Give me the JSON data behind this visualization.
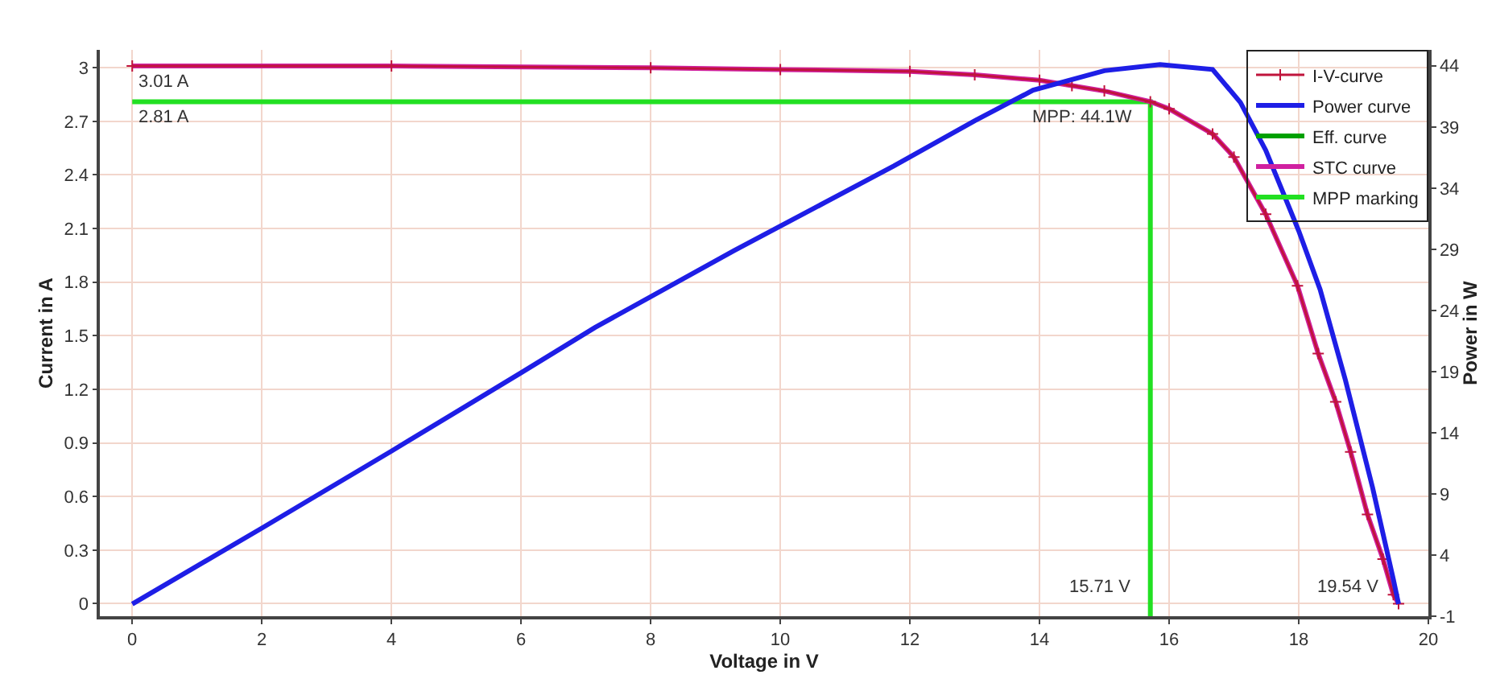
{
  "chart_data": {
    "type": "line",
    "xlabel": "Voltage in V",
    "ylabel": "Current in A",
    "y2label": "Power in W",
    "xlim": [
      -0.5,
      20
    ],
    "xticks": [
      0,
      2,
      4,
      6,
      8,
      10,
      12,
      14,
      16,
      18,
      20
    ],
    "ylim": [
      -0.07,
      3.1
    ],
    "yticks": [
      0,
      0.3,
      0.6,
      0.9,
      1.2,
      1.5,
      1.8,
      2.1,
      2.4,
      2.7,
      3
    ],
    "y2lim": [
      -1,
      45.3
    ],
    "y2ticks": [
      -1,
      4,
      9,
      14,
      19,
      24,
      29,
      34,
      39,
      44
    ],
    "grid": true,
    "legend": "top right",
    "line_style": "solid",
    "series": [
      {
        "name": "I-V-curve",
        "color": "#c0143c",
        "marker": "cross",
        "x": [
          0,
          4,
          8,
          10,
          12,
          13,
          14,
          14.5,
          15,
          15.71,
          16,
          16.67,
          17,
          17.49,
          17.98,
          18.3,
          18.57,
          18.8,
          19.06,
          19.3,
          19.46,
          19.54
        ],
        "values": [
          3.01,
          3.01,
          3.0,
          2.99,
          2.98,
          2.96,
          2.93,
          2.9,
          2.87,
          2.81,
          2.77,
          2.63,
          2.5,
          2.18,
          1.78,
          1.4,
          1.13,
          0.85,
          0.5,
          0.25,
          0.05,
          0
        ]
      },
      {
        "name": "Power curve",
        "color": "#1e1ee6",
        "axis": "y2",
        "x": [
          0,
          2,
          4,
          6,
          7.14,
          9.29,
          11.75,
          13,
          13.9,
          15,
          15.86,
          16.67,
          17.1,
          17.49,
          18,
          18.33,
          18.72,
          19.14,
          19.46,
          19.54
        ],
        "values": [
          0,
          6.2,
          12.5,
          18.9,
          22.6,
          28.9,
          35.8,
          39.5,
          42.0,
          43.6,
          44.1,
          43.7,
          41,
          37.1,
          30.5,
          25.7,
          18.3,
          9.5,
          2.0,
          0
        ]
      },
      {
        "name": "Eff. curve",
        "color": "#00a000",
        "values": [
          null
        ]
      },
      {
        "name": "STC curve",
        "color": "#d020a0",
        "x": [
          0,
          4,
          8,
          10,
          12,
          13,
          14,
          14.5,
          15,
          15.71,
          16,
          16.67,
          17,
          17.49,
          17.98,
          18.3,
          18.57,
          18.8,
          19.06,
          19.3,
          19.46,
          19.54
        ],
        "values": [
          3.01,
          3.01,
          3.0,
          2.99,
          2.98,
          2.96,
          2.93,
          2.9,
          2.87,
          2.81,
          2.77,
          2.63,
          2.5,
          2.18,
          1.78,
          1.4,
          1.13,
          0.85,
          0.5,
          0.25,
          0.05,
          0
        ]
      },
      {
        "name": "MPP marking",
        "color": "#22e022",
        "x": [
          0,
          15.71,
          15.71
        ],
        "values": [
          2.81,
          2.81,
          -0.07
        ]
      }
    ],
    "annotations": [
      {
        "text": "3.01 A",
        "x": 0,
        "y": 3.01
      },
      {
        "text": "2.81 A",
        "x": 0,
        "y": 2.81
      },
      {
        "text": "MPP: 44.1W",
        "x": 15.71,
        "y": 2.81
      },
      {
        "text": "15.71 V",
        "x": 15.71,
        "y": 0
      },
      {
        "text": "19.54 V",
        "x": 19.54,
        "y": 0
      }
    ]
  }
}
